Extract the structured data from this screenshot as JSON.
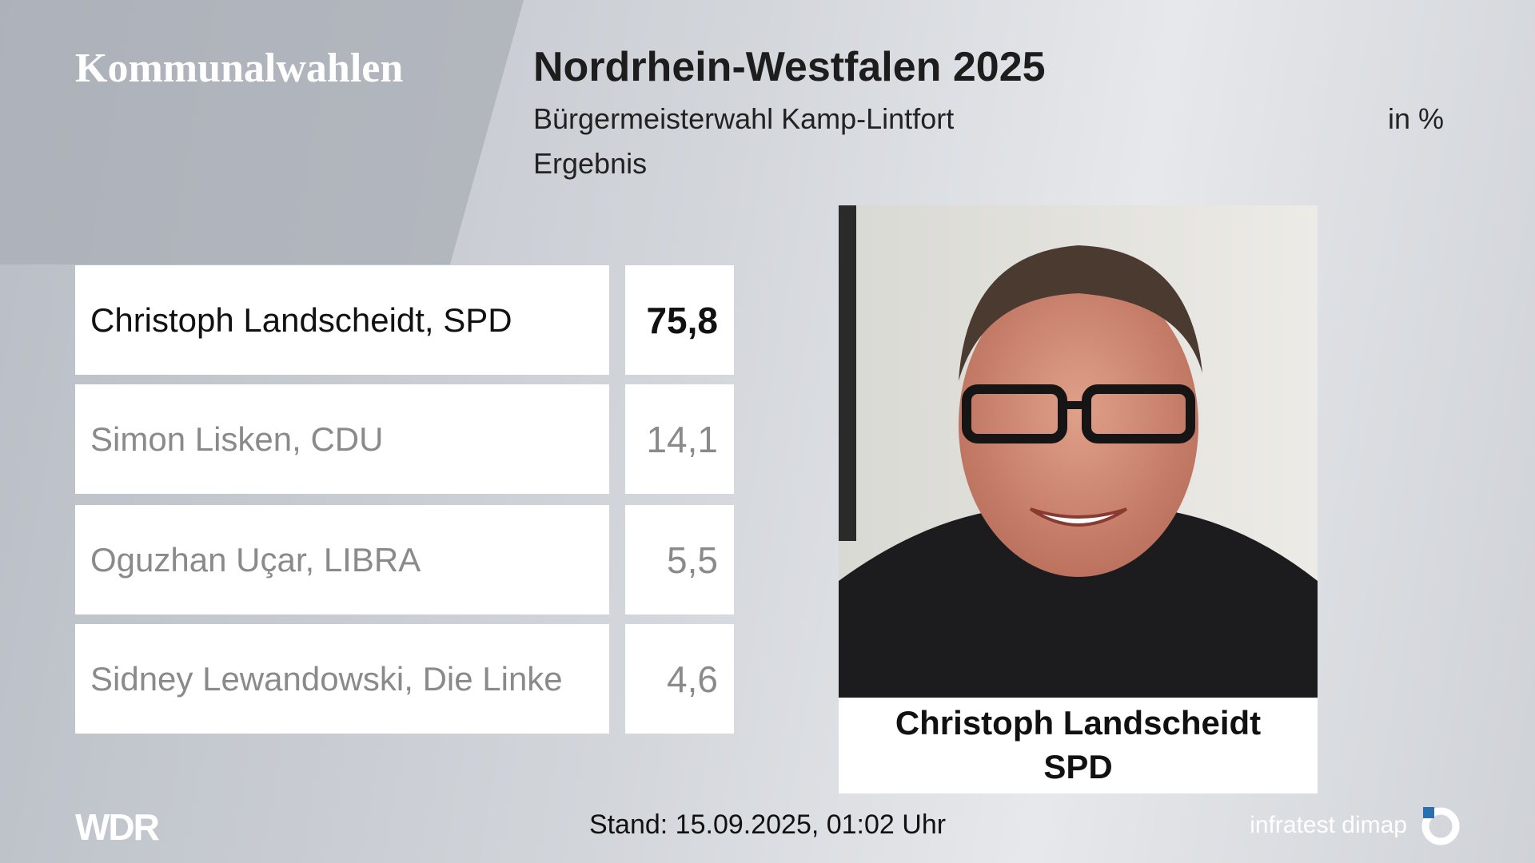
{
  "header": {
    "brand": "Kommunalwahlen",
    "title": "Nordrhein-Westfalen 2025",
    "subtitle": "Bürgermeisterwahl Kamp-Lintfort",
    "unit": "in %",
    "status": "Ergebnis"
  },
  "table": {
    "rows": [
      [
        "Christoph Landscheidt, SPD",
        "75,8"
      ],
      [
        "Simon Lisken, CDU",
        "14,1"
      ],
      [
        "Oguzhan Uçar, LIBRA",
        "5,5"
      ],
      [
        "Sidney Lewandowski, Die Linke",
        "4,6"
      ]
    ]
  },
  "winner": {
    "name": "Christoph Landscheidt",
    "party": "SPD"
  },
  "footer": {
    "logo": "WDR",
    "timestamp": "Stand: 15.09.2025, 01:02 Uhr",
    "source": "infratest dimap"
  }
}
